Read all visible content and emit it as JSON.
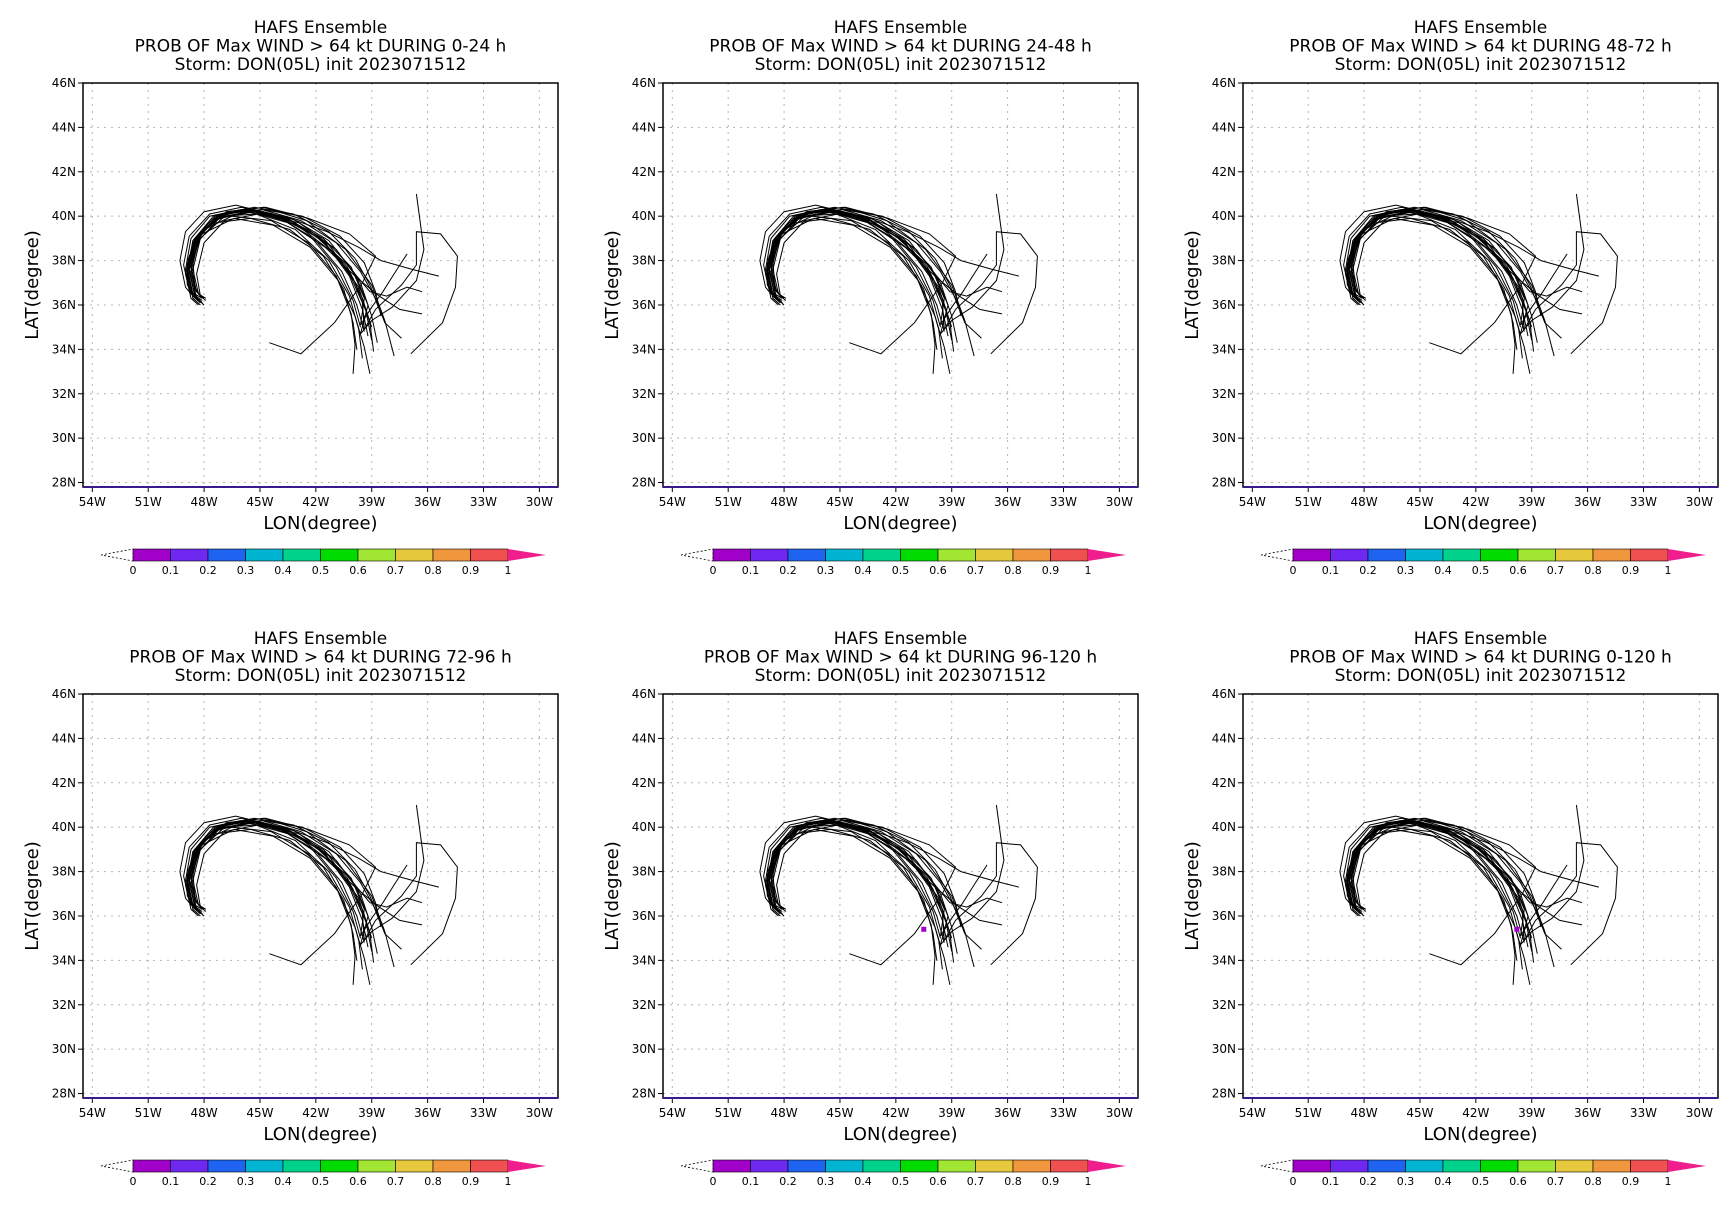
{
  "colors": {
    "frame": "#000000",
    "grid": "#b4b4b4",
    "track": "#000000",
    "prob_marker": "#a000c8"
  },
  "axes": {
    "xlabel": "LON(degree)",
    "ylabel": "LAT(degree)",
    "xlim": [
      -54.5,
      -29
    ],
    "ylim": [
      27.8,
      46
    ],
    "xticks": [
      -54,
      -51,
      -48,
      -45,
      -42,
      -39,
      -36,
      -33,
      -30
    ],
    "xtick_labels": [
      "54W",
      "51W",
      "48W",
      "45W",
      "42W",
      "39W",
      "36W",
      "33W",
      "30W"
    ],
    "yticks": [
      28,
      30,
      32,
      34,
      36,
      38,
      40,
      42,
      44,
      46
    ],
    "ytick_labels": [
      "28N",
      "30N",
      "32N",
      "34N",
      "36N",
      "38N",
      "40N",
      "42N",
      "44N",
      "46N"
    ],
    "grid": true
  },
  "colorbar": {
    "labels": [
      "0",
      "0.1",
      "0.2",
      "0.3",
      "0.4",
      "0.5",
      "0.6",
      "0.7",
      "0.8",
      "0.9",
      "1"
    ],
    "colors": [
      "#a000c8",
      "#6e28f0",
      "#1e64f0",
      "#00b4d2",
      "#00d28c",
      "#00dc00",
      "#a0e632",
      "#e6c83c",
      "#f0963c",
      "#f05050",
      "#f01e8c"
    ]
  },
  "chart_data": [
    {
      "type": "line",
      "title_lines": [
        "HAFS Ensemble",
        "PROB OF Max WIND > 64 kt DURING  0-24 h",
        "Storm: DON(05L) init 2023071512"
      ],
      "prob_points": []
    },
    {
      "type": "line",
      "title_lines": [
        "HAFS Ensemble",
        "PROB OF Max WIND > 64 kt DURING 24-48 h",
        "Storm: DON(05L) init 2023071512"
      ],
      "prob_points": []
    },
    {
      "type": "line",
      "title_lines": [
        "HAFS Ensemble",
        "PROB OF Max WIND > 64 kt DURING 48-72 h",
        "Storm: DON(05L) init 2023071512"
      ],
      "prob_points": []
    },
    {
      "type": "line",
      "title_lines": [
        "HAFS Ensemble",
        "PROB OF Max WIND > 64 kt DURING 72-96 h",
        "Storm: DON(05L) init 2023071512"
      ],
      "prob_points": []
    },
    {
      "type": "line",
      "title_lines": [
        "HAFS Ensemble",
        "PROB OF Max WIND > 64 kt DURING 96-120 h",
        "Storm: DON(05L) init 2023071512"
      ],
      "prob_points": [
        {
          "lon": -40.5,
          "lat": 35.4,
          "prob": 0.03
        }
      ]
    },
    {
      "type": "line",
      "title_lines": [
        "HAFS Ensemble",
        "PROB OF Max WIND > 64 kt DURING 0-120 h",
        "Storm: DON(05L) init 2023071512"
      ],
      "prob_points": [
        {
          "lon": -39.8,
          "lat": 35.4,
          "prob": 0.03
        }
      ]
    }
  ],
  "tracks": [
    [
      [
        -39.2,
        34.6
      ],
      [
        -39.5,
        35.8
      ],
      [
        -40.2,
        37.3
      ],
      [
        -41.5,
        38.8
      ],
      [
        -43.5,
        39.9
      ],
      [
        -45.6,
        40.3
      ],
      [
        -47.4,
        40.0
      ],
      [
        -48.5,
        39.0
      ],
      [
        -48.9,
        37.6
      ],
      [
        -48.6,
        36.4
      ],
      [
        -48.2,
        36.1
      ]
    ],
    [
      [
        -39.0,
        34.4
      ],
      [
        -39.3,
        35.7
      ],
      [
        -40.0,
        37.2
      ],
      [
        -41.3,
        38.7
      ],
      [
        -43.3,
        39.8
      ],
      [
        -45.4,
        40.2
      ],
      [
        -47.2,
        39.9
      ],
      [
        -48.3,
        38.9
      ],
      [
        -48.7,
        37.5
      ],
      [
        -48.4,
        36.3
      ],
      [
        -48.0,
        36.0
      ]
    ],
    [
      [
        -39.4,
        34.8
      ],
      [
        -39.8,
        36.0
      ],
      [
        -40.6,
        37.5
      ],
      [
        -42.0,
        38.9
      ],
      [
        -44.0,
        40.0
      ],
      [
        -46.0,
        40.4
      ],
      [
        -47.7,
        40.1
      ],
      [
        -48.8,
        39.1
      ],
      [
        -49.1,
        37.8
      ],
      [
        -48.8,
        36.7
      ],
      [
        -48.4,
        36.4
      ]
    ],
    [
      [
        -38.7,
        34.3
      ],
      [
        -39.0,
        35.5
      ],
      [
        -39.6,
        37.0
      ],
      [
        -40.9,
        38.5
      ],
      [
        -42.9,
        39.7
      ],
      [
        -45.1,
        40.1
      ],
      [
        -46.9,
        39.8
      ],
      [
        -48.0,
        38.8
      ],
      [
        -48.4,
        37.4
      ],
      [
        -48.2,
        36.4
      ],
      [
        -47.9,
        36.2
      ]
    ],
    [
      [
        -39.6,
        35.0
      ],
      [
        -40.0,
        36.2
      ],
      [
        -40.9,
        37.7
      ],
      [
        -42.3,
        39.1
      ],
      [
        -44.3,
        40.1
      ],
      [
        -46.3,
        40.5
      ],
      [
        -48.0,
        40.2
      ],
      [
        -49.0,
        39.3
      ],
      [
        -49.3,
        38.0
      ],
      [
        -49.0,
        36.8
      ],
      [
        -48.7,
        36.5
      ]
    ],
    [
      [
        -38.9,
        33.9
      ],
      [
        -39.1,
        35.2
      ],
      [
        -39.7,
        36.8
      ],
      [
        -41.0,
        38.3
      ],
      [
        -43.0,
        39.6
      ],
      [
        -45.3,
        40.2
      ],
      [
        -47.3,
        39.9
      ],
      [
        -48.6,
        38.8
      ],
      [
        -49.0,
        37.4
      ],
      [
        -48.7,
        36.3
      ],
      [
        -48.3,
        36.0
      ]
    ],
    [
      [
        -39.5,
        33.6
      ],
      [
        -39.7,
        34.9
      ],
      [
        -40.2,
        36.4
      ],
      [
        -41.3,
        38.0
      ],
      [
        -43.1,
        39.4
      ],
      [
        -45.2,
        40.1
      ],
      [
        -47.1,
        40.0
      ],
      [
        -48.4,
        39.1
      ],
      [
        -48.9,
        37.7
      ],
      [
        -48.6,
        36.5
      ],
      [
        -48.1,
        36.2
      ]
    ],
    [
      [
        -37.8,
        33.7
      ],
      [
        -38.3,
        35.3
      ],
      [
        -39.0,
        36.9
      ],
      [
        -40.4,
        38.5
      ],
      [
        -42.5,
        39.8
      ],
      [
        -44.8,
        40.4
      ],
      [
        -46.8,
        40.2
      ],
      [
        -48.1,
        39.3
      ],
      [
        -48.6,
        38.0
      ],
      [
        -48.5,
        36.8
      ],
      [
        -48.2,
        36.4
      ]
    ],
    [
      [
        -38.5,
        35.5
      ],
      [
        -38.8,
        36.6
      ],
      [
        -39.4,
        37.9
      ],
      [
        -40.7,
        39.1
      ],
      [
        -42.7,
        40.0
      ],
      [
        -44.9,
        40.3
      ],
      [
        -46.9,
        40.0
      ],
      [
        -48.2,
        39.0
      ],
      [
        -48.6,
        37.6
      ],
      [
        -48.3,
        36.5
      ],
      [
        -47.9,
        36.3
      ]
    ],
    [
      [
        -40.0,
        32.9
      ],
      [
        -39.9,
        34.2
      ],
      [
        -40.1,
        35.6
      ],
      [
        -40.9,
        37.3
      ],
      [
        -42.4,
        38.8
      ],
      [
        -44.4,
        39.8
      ],
      [
        -46.5,
        40.0
      ],
      [
        -48.0,
        39.4
      ],
      [
        -48.8,
        38.2
      ],
      [
        -48.9,
        37.0
      ],
      [
        -48.6,
        36.4
      ]
    ],
    [
      [
        -39.1,
        32.9
      ],
      [
        -39.4,
        34.1
      ],
      [
        -39.9,
        35.5
      ],
      [
        -40.8,
        37.1
      ],
      [
        -42.3,
        38.6
      ],
      [
        -44.3,
        39.6
      ],
      [
        -46.4,
        39.9
      ],
      [
        -48.1,
        39.2
      ],
      [
        -48.9,
        38.0
      ],
      [
        -48.9,
        36.9
      ],
      [
        -48.5,
        36.4
      ]
    ],
    [
      [
        -39.8,
        34.0
      ],
      [
        -40.0,
        35.2
      ],
      [
        -40.5,
        36.7
      ],
      [
        -41.6,
        38.2
      ],
      [
        -43.4,
        39.4
      ],
      [
        -45.5,
        39.9
      ],
      [
        -47.4,
        39.7
      ],
      [
        -48.5,
        38.7
      ],
      [
        -48.9,
        37.4
      ],
      [
        -48.6,
        36.4
      ],
      [
        -48.2,
        36.2
      ]
    ],
    [
      [
        -39.0,
        35.0
      ],
      [
        -39.5,
        36.3
      ],
      [
        -40.3,
        37.7
      ],
      [
        -41.8,
        39.0
      ],
      [
        -43.8,
        39.9
      ],
      [
        -45.8,
        40.2
      ],
      [
        -47.5,
        39.8
      ],
      [
        -48.5,
        38.8
      ],
      [
        -48.8,
        37.5
      ],
      [
        -48.5,
        36.5
      ],
      [
        -48.1,
        36.3
      ]
    ],
    [
      [
        -38.6,
        35.8
      ],
      [
        -39.1,
        36.9
      ],
      [
        -39.9,
        38.1
      ],
      [
        -41.3,
        39.3
      ],
      [
        -43.2,
        40.1
      ],
      [
        -45.3,
        40.4
      ],
      [
        -47.1,
        40.1
      ],
      [
        -48.3,
        39.1
      ],
      [
        -48.7,
        37.7
      ],
      [
        -48.4,
        36.6
      ],
      [
        -48.0,
        36.3
      ]
    ],
    [
      [
        -44.5,
        34.3
      ],
      [
        -42.8,
        33.8
      ],
      [
        -41.0,
        35.2
      ],
      [
        -39.5,
        37.0
      ],
      [
        -38.8,
        38.2
      ],
      [
        -40.2,
        39.2
      ],
      [
        -42.4,
        39.9
      ],
      [
        -44.7,
        40.4
      ],
      [
        -46.8,
        40.2
      ],
      [
        -48.3,
        39.2
      ],
      [
        -48.8,
        37.7
      ],
      [
        -48.5,
        36.4
      ],
      [
        -48.1,
        36.1
      ]
    ],
    [
      [
        -36.6,
        41.0
      ],
      [
        -36.2,
        38.5
      ],
      [
        -36.6,
        37.1
      ],
      [
        -37.9,
        35.9
      ],
      [
        -39.0,
        35.3
      ],
      [
        -39.6,
        34.7
      ],
      [
        -39.2,
        36.0
      ],
      [
        -39.9,
        37.4
      ],
      [
        -41.3,
        38.9
      ],
      [
        -43.3,
        39.9
      ],
      [
        -45.4,
        40.3
      ],
      [
        -47.3,
        40.0
      ],
      [
        -48.4,
        39.0
      ],
      [
        -48.8,
        37.6
      ],
      [
        -48.5,
        36.4
      ],
      [
        -48.1,
        36.1
      ]
    ],
    [
      [
        -36.9,
        33.8
      ],
      [
        -35.2,
        35.2
      ],
      [
        -34.5,
        36.8
      ],
      [
        -34.4,
        38.2
      ],
      [
        -35.3,
        39.2
      ],
      [
        -36.6,
        39.3
      ],
      [
        -36.6,
        37.8
      ],
      [
        -37.4,
        36.9
      ],
      [
        -38.8,
        35.8
      ],
      [
        -39.4,
        34.9
      ],
      [
        -39.5,
        36.1
      ],
      [
        -40.3,
        37.6
      ],
      [
        -41.8,
        39.0
      ],
      [
        -43.8,
        40.0
      ],
      [
        -45.8,
        40.3
      ],
      [
        -47.5,
        39.9
      ],
      [
        -48.6,
        38.9
      ],
      [
        -48.9,
        37.5
      ],
      [
        -48.6,
        36.4
      ],
      [
        -48.2,
        36.2
      ]
    ],
    [
      [
        -35.4,
        37.3
      ],
      [
        -36.8,
        37.6
      ],
      [
        -38.5,
        38.0
      ],
      [
        -39.7,
        38.6
      ],
      [
        -41.4,
        39.3
      ],
      [
        -43.4,
        39.9
      ],
      [
        -45.5,
        40.3
      ],
      [
        -47.3,
        40.0
      ],
      [
        -48.4,
        39.0
      ],
      [
        -48.8,
        37.6
      ],
      [
        -48.5,
        36.4
      ],
      [
        -48.1,
        36.1
      ]
    ],
    [
      [
        -36.3,
        35.6
      ],
      [
        -37.5,
        35.8
      ],
      [
        -38.6,
        36.4
      ],
      [
        -39.9,
        37.3
      ],
      [
        -41.5,
        38.6
      ],
      [
        -43.5,
        39.7
      ],
      [
        -45.6,
        40.2
      ],
      [
        -47.4,
        39.9
      ],
      [
        -48.5,
        38.9
      ],
      [
        -48.9,
        37.5
      ],
      [
        -48.6,
        36.3
      ],
      [
        -48.2,
        36.0
      ]
    ],
    [
      [
        -37.1,
        38.3
      ],
      [
        -37.8,
        37.4
      ],
      [
        -38.4,
        36.6
      ],
      [
        -39.0,
        35.9
      ],
      [
        -39.6,
        35.1
      ],
      [
        -39.4,
        36.3
      ],
      [
        -40.1,
        37.7
      ],
      [
        -41.6,
        39.0
      ],
      [
        -43.6,
        39.9
      ],
      [
        -45.7,
        40.3
      ],
      [
        -47.5,
        40.0
      ],
      [
        -48.6,
        38.9
      ],
      [
        -48.9,
        37.5
      ],
      [
        -48.6,
        36.4
      ],
      [
        -48.2,
        36.1
      ]
    ],
    [
      [
        -36.3,
        36.6
      ],
      [
        -37.1,
        36.8
      ],
      [
        -38.2,
        36.4
      ],
      [
        -39.1,
        36.6
      ],
      [
        -40.3,
        37.8
      ],
      [
        -42.0,
        39.1
      ],
      [
        -44.0,
        40.0
      ],
      [
        -46.0,
        40.3
      ],
      [
        -47.7,
        40.0
      ],
      [
        -48.7,
        39.0
      ],
      [
        -49.0,
        37.6
      ],
      [
        -48.7,
        36.5
      ],
      [
        -48.3,
        36.2
      ]
    ],
    [
      [
        -37.4,
        34.5
      ],
      [
        -38.3,
        35.2
      ],
      [
        -38.8,
        36.3
      ],
      [
        -39.6,
        37.5
      ],
      [
        -40.9,
        38.8
      ],
      [
        -42.8,
        39.8
      ],
      [
        -44.9,
        40.3
      ],
      [
        -46.9,
        40.1
      ],
      [
        -48.2,
        39.2
      ],
      [
        -48.7,
        37.9
      ],
      [
        -48.5,
        36.7
      ],
      [
        -48.1,
        36.3
      ]
    ]
  ]
}
